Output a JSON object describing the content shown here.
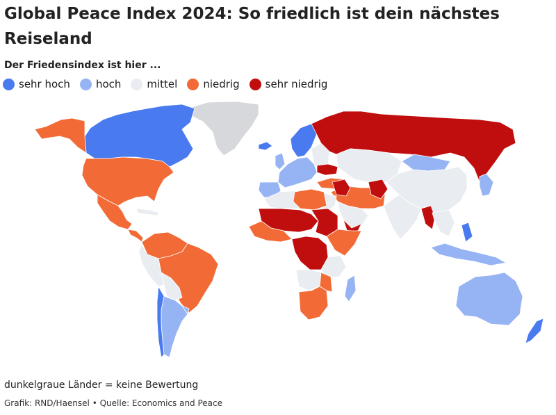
{
  "header": {
    "title": "Global Peace Index 2024: So friedlich ist dein nächstes Reiseland",
    "subtitle": "Der Friedensindex ist hier ..."
  },
  "legend": {
    "items": [
      {
        "label": "sehr hoch",
        "color": "#4a7af0"
      },
      {
        "label": "hoch",
        "color": "#96b4f4"
      },
      {
        "label": "mittel",
        "color": "#e9ecf0"
      },
      {
        "label": "niedrig",
        "color": "#f26a36"
      },
      {
        "label": "sehr niedrig",
        "color": "#c00d0d"
      }
    ]
  },
  "footer": {
    "note": "dunkelgraue Länder = keine Bewertung",
    "credit": "Grafik: RND/Haensel • Quelle: Economics and Peace"
  },
  "colors": {
    "no_rating": "#d6d8db",
    "border": "#ffffff"
  }
}
